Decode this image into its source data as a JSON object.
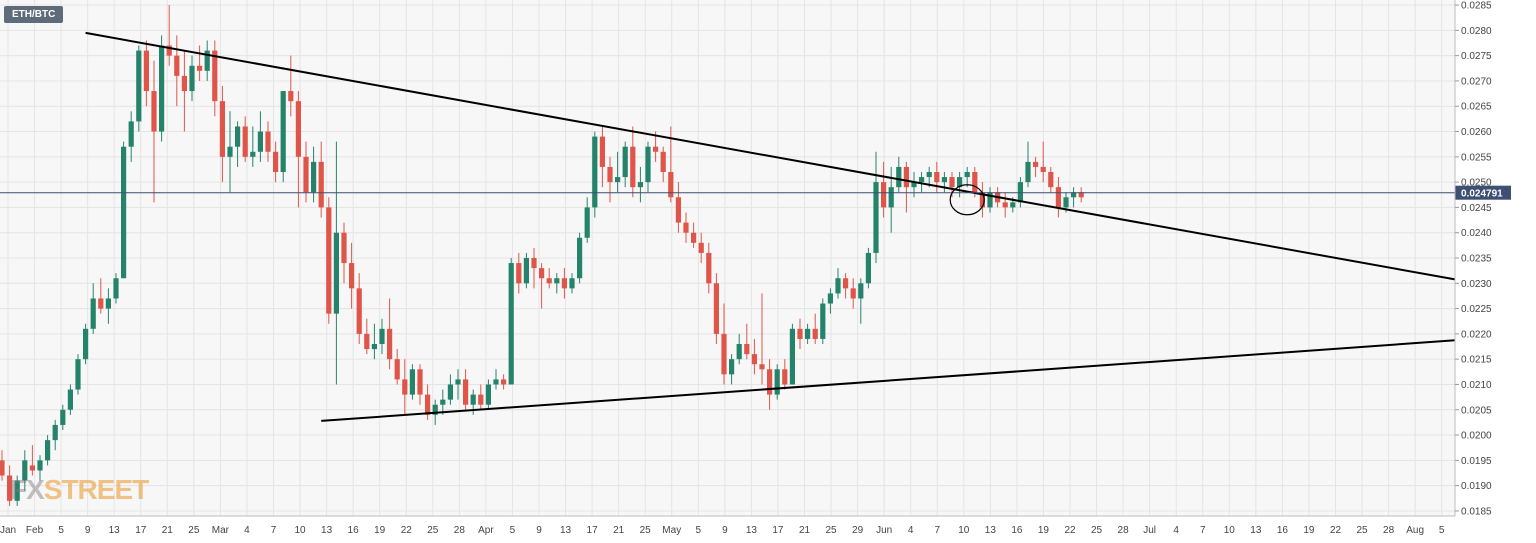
{
  "symbol": "ETH/BTC",
  "watermark": {
    "prefix": "FX",
    "suffix": "STREET"
  },
  "colors": {
    "up": "#26836b",
    "down": "#e0554a",
    "price_line": "#3d4f73",
    "trendline": "#000000",
    "grid": "#e4e4e4",
    "background": "#f7f7f7"
  },
  "chart_data": {
    "type": "candlestick",
    "title": "",
    "ylim": [
      0.0184,
      0.0286
    ],
    "y_ticks": [
      "0.0185",
      "0.0190",
      "0.0195",
      "0.0200",
      "0.0205",
      "0.0210",
      "0.0215",
      "0.0220",
      "0.0225",
      "0.0230",
      "0.0235",
      "0.0240",
      "0.0245",
      "0.0250",
      "0.0255",
      "0.0260",
      "0.0265",
      "0.0270",
      "0.0275",
      "0.0280",
      "0.0285"
    ],
    "x_ticks": [
      "Jan",
      "Feb",
      "5",
      "9",
      "13",
      "17",
      "21",
      "25",
      "Mar",
      "4",
      "7",
      "10",
      "13",
      "16",
      "19",
      "22",
      "25",
      "28",
      "Apr",
      "5",
      "9",
      "13",
      "17",
      "21",
      "25",
      "May",
      "5",
      "9",
      "13",
      "17",
      "21",
      "25",
      "29",
      "Jun",
      "4",
      "7",
      "10",
      "13",
      "16",
      "19",
      "22",
      "25",
      "28",
      "Jul",
      "4",
      "7",
      "10",
      "13",
      "16",
      "19",
      "22",
      "25",
      "28",
      "Aug",
      "5"
    ],
    "last_price": 0.024791,
    "last_price_label": "0.024791",
    "grid": true,
    "candles": [
      [
        0.0195,
        0.0197,
        0.0191,
        0.0192
      ],
      [
        0.0192,
        0.0194,
        0.0186,
        0.0187
      ],
      [
        0.0187,
        0.0192,
        0.0186,
        0.0191
      ],
      [
        0.0191,
        0.0197,
        0.0189,
        0.0195
      ],
      [
        0.0194,
        0.0198,
        0.0192,
        0.0193
      ],
      [
        0.0193,
        0.0196,
        0.0191,
        0.0195
      ],
      [
        0.0195,
        0.02,
        0.0194,
        0.0199
      ],
      [
        0.0199,
        0.0203,
        0.0197,
        0.0202
      ],
      [
        0.0202,
        0.0206,
        0.0201,
        0.0205
      ],
      [
        0.0205,
        0.021,
        0.0204,
        0.0209
      ],
      [
        0.0209,
        0.0216,
        0.0208,
        0.0215
      ],
      [
        0.0215,
        0.0222,
        0.0214,
        0.0221
      ],
      [
        0.0221,
        0.023,
        0.022,
        0.0227
      ],
      [
        0.0227,
        0.0231,
        0.0224,
        0.0225
      ],
      [
        0.0225,
        0.0229,
        0.0222,
        0.0227
      ],
      [
        0.0227,
        0.0232,
        0.0226,
        0.0231
      ],
      [
        0.0231,
        0.0258,
        0.0231,
        0.0257
      ],
      [
        0.0257,
        0.0264,
        0.0254,
        0.0262
      ],
      [
        0.0262,
        0.0277,
        0.026,
        0.0276
      ],
      [
        0.0276,
        0.0278,
        0.0265,
        0.0268
      ],
      [
        0.0268,
        0.0274,
        0.0246,
        0.026
      ],
      [
        0.026,
        0.0279,
        0.0258,
        0.0277
      ],
      [
        0.0277,
        0.0285,
        0.0273,
        0.0275
      ],
      [
        0.0275,
        0.0279,
        0.0265,
        0.0271
      ],
      [
        0.0271,
        0.0276,
        0.026,
        0.0268
      ],
      [
        0.0268,
        0.0275,
        0.0266,
        0.0273
      ],
      [
        0.0273,
        0.0277,
        0.027,
        0.0272
      ],
      [
        0.0272,
        0.0278,
        0.027,
        0.0276
      ],
      [
        0.0276,
        0.0278,
        0.0263,
        0.0266
      ],
      [
        0.0266,
        0.0269,
        0.025,
        0.0255
      ],
      [
        0.0255,
        0.0264,
        0.0248,
        0.0257
      ],
      [
        0.0257,
        0.0262,
        0.0253,
        0.0261
      ],
      [
        0.0261,
        0.0263,
        0.0254,
        0.0255
      ],
      [
        0.0255,
        0.0261,
        0.0253,
        0.0256
      ],
      [
        0.0256,
        0.0264,
        0.0254,
        0.026
      ],
      [
        0.026,
        0.0262,
        0.0254,
        0.0256
      ],
      [
        0.0256,
        0.0258,
        0.025,
        0.0252
      ],
      [
        0.0252,
        0.0268,
        0.025,
        0.0268
      ],
      [
        0.0268,
        0.0275,
        0.0263,
        0.0266
      ],
      [
        0.0266,
        0.0268,
        0.0245,
        0.0255
      ],
      [
        0.0255,
        0.0258,
        0.0246,
        0.0248
      ],
      [
        0.0248,
        0.0257,
        0.0246,
        0.0254
      ],
      [
        0.0254,
        0.0258,
        0.0243,
        0.0245
      ],
      [
        0.0245,
        0.0247,
        0.0222,
        0.0224
      ],
      [
        0.0224,
        0.0258,
        0.021,
        0.024
      ],
      [
        0.024,
        0.0242,
        0.023,
        0.0234
      ],
      [
        0.0234,
        0.0238,
        0.0225,
        0.0229
      ],
      [
        0.0229,
        0.0232,
        0.0218,
        0.022
      ],
      [
        0.022,
        0.0223,
        0.0216,
        0.0217
      ],
      [
        0.0217,
        0.0222,
        0.0215,
        0.0218
      ],
      [
        0.0218,
        0.0223,
        0.0216,
        0.0221
      ],
      [
        0.0221,
        0.0227,
        0.0213,
        0.0215
      ],
      [
        0.0215,
        0.0217,
        0.021,
        0.0211
      ],
      [
        0.0211,
        0.0215,
        0.0204,
        0.0208
      ],
      [
        0.0208,
        0.0214,
        0.0207,
        0.0213
      ],
      [
        0.0213,
        0.0214,
        0.0206,
        0.0208
      ],
      [
        0.0208,
        0.021,
        0.0203,
        0.0204
      ],
      [
        0.0204,
        0.0207,
        0.0202,
        0.0206
      ],
      [
        0.0206,
        0.0209,
        0.0204,
        0.0207
      ],
      [
        0.0207,
        0.0212,
        0.0206,
        0.021
      ],
      [
        0.021,
        0.0213,
        0.0207,
        0.0211
      ],
      [
        0.0211,
        0.0213,
        0.0205,
        0.0206
      ],
      [
        0.0206,
        0.0209,
        0.0204,
        0.0208
      ],
      [
        0.0208,
        0.021,
        0.0205,
        0.0206
      ],
      [
        0.0206,
        0.0211,
        0.0205,
        0.021
      ],
      [
        0.021,
        0.0213,
        0.0209,
        0.0211
      ],
      [
        0.0211,
        0.0212,
        0.0209,
        0.021
      ],
      [
        0.021,
        0.0235,
        0.021,
        0.0234
      ],
      [
        0.0234,
        0.0236,
        0.0228,
        0.023
      ],
      [
        0.023,
        0.0236,
        0.0229,
        0.0235
      ],
      [
        0.0235,
        0.0237,
        0.0229,
        0.0233
      ],
      [
        0.0233,
        0.0234,
        0.0225,
        0.0231
      ],
      [
        0.0231,
        0.0233,
        0.0229,
        0.023
      ],
      [
        0.023,
        0.0232,
        0.0228,
        0.0231
      ],
      [
        0.0231,
        0.0233,
        0.0227,
        0.0229
      ],
      [
        0.0229,
        0.0232,
        0.0228,
        0.0231
      ],
      [
        0.0231,
        0.024,
        0.023,
        0.0239
      ],
      [
        0.0239,
        0.0247,
        0.0238,
        0.0245
      ],
      [
        0.0245,
        0.026,
        0.0243,
        0.0259
      ],
      [
        0.0259,
        0.0261,
        0.0249,
        0.0253
      ],
      [
        0.0253,
        0.0255,
        0.0246,
        0.025
      ],
      [
        0.025,
        0.0256,
        0.0248,
        0.0251
      ],
      [
        0.0251,
        0.0258,
        0.0249,
        0.0257
      ],
      [
        0.0257,
        0.0261,
        0.0247,
        0.0249
      ],
      [
        0.0249,
        0.0253,
        0.0246,
        0.025
      ],
      [
        0.025,
        0.0258,
        0.0248,
        0.0257
      ],
      [
        0.0257,
        0.026,
        0.0254,
        0.0256
      ],
      [
        0.0256,
        0.0257,
        0.025,
        0.0252
      ],
      [
        0.0252,
        0.0261,
        0.0246,
        0.0247
      ],
      [
        0.0247,
        0.025,
        0.024,
        0.0242
      ],
      [
        0.0242,
        0.0244,
        0.0238,
        0.024
      ],
      [
        0.024,
        0.0242,
        0.0237,
        0.0238
      ],
      [
        0.0238,
        0.024,
        0.0234,
        0.0236
      ],
      [
        0.0236,
        0.0238,
        0.0228,
        0.023
      ],
      [
        0.023,
        0.0232,
        0.0218,
        0.022
      ],
      [
        0.022,
        0.0226,
        0.021,
        0.0212
      ],
      [
        0.0212,
        0.0216,
        0.021,
        0.0215
      ],
      [
        0.0215,
        0.022,
        0.0214,
        0.0218
      ],
      [
        0.0218,
        0.0222,
        0.0215,
        0.0216
      ],
      [
        0.0216,
        0.0219,
        0.0212,
        0.0214
      ],
      [
        0.0214,
        0.0228,
        0.021,
        0.0213
      ],
      [
        0.0213,
        0.0215,
        0.0205,
        0.0208
      ],
      [
        0.0208,
        0.0214,
        0.0207,
        0.0213
      ],
      [
        0.0213,
        0.0215,
        0.0209,
        0.021
      ],
      [
        0.021,
        0.0222,
        0.021,
        0.0221
      ],
      [
        0.0221,
        0.0223,
        0.0217,
        0.0219
      ],
      [
        0.0219,
        0.0222,
        0.0218,
        0.0221
      ],
      [
        0.0221,
        0.0224,
        0.0218,
        0.0219
      ],
      [
        0.0219,
        0.0227,
        0.0218,
        0.0226
      ],
      [
        0.0226,
        0.0229,
        0.0224,
        0.0228
      ],
      [
        0.0228,
        0.0233,
        0.0227,
        0.0231
      ],
      [
        0.0231,
        0.0232,
        0.0227,
        0.0229
      ],
      [
        0.0229,
        0.0231,
        0.0225,
        0.0227
      ],
      [
        0.0227,
        0.0231,
        0.0222,
        0.023
      ],
      [
        0.023,
        0.0237,
        0.0229,
        0.0236
      ],
      [
        0.0236,
        0.0256,
        0.0234,
        0.025
      ],
      [
        0.025,
        0.0254,
        0.0243,
        0.0245
      ],
      [
        0.0245,
        0.0253,
        0.024,
        0.0249
      ],
      [
        0.0249,
        0.0255,
        0.0248,
        0.0253
      ],
      [
        0.0253,
        0.0254,
        0.0244,
        0.0249
      ],
      [
        0.0249,
        0.0252,
        0.0247,
        0.025
      ],
      [
        0.025,
        0.0252,
        0.0248,
        0.0251
      ],
      [
        0.0251,
        0.0253,
        0.0249,
        0.0252
      ],
      [
        0.0252,
        0.0254,
        0.0248,
        0.025
      ],
      [
        0.025,
        0.0252,
        0.0248,
        0.0251
      ],
      [
        0.0251,
        0.0252,
        0.0247,
        0.0249
      ],
      [
        0.0249,
        0.0252,
        0.0247,
        0.0251
      ],
      [
        0.0251,
        0.0253,
        0.0249,
        0.0252
      ],
      [
        0.0252,
        0.0253,
        0.0247,
        0.0248
      ],
      [
        0.0248,
        0.025,
        0.0243,
        0.0245
      ],
      [
        0.0245,
        0.0249,
        0.0244,
        0.0248
      ],
      [
        0.0248,
        0.0249,
        0.0245,
        0.0246
      ],
      [
        0.0246,
        0.0248,
        0.0243,
        0.0245
      ],
      [
        0.0245,
        0.0247,
        0.0244,
        0.0246
      ],
      [
        0.0246,
        0.0251,
        0.0245,
        0.025
      ],
      [
        0.025,
        0.0258,
        0.0249,
        0.0254
      ],
      [
        0.0254,
        0.0255,
        0.0251,
        0.0253
      ],
      [
        0.0253,
        0.0258,
        0.025,
        0.0252
      ],
      [
        0.0252,
        0.0253,
        0.0248,
        0.0249
      ],
      [
        0.0249,
        0.0251,
        0.0243,
        0.0245
      ],
      [
        0.0245,
        0.0248,
        0.0244,
        0.0247
      ],
      [
        0.0247,
        0.0249,
        0.0245,
        0.0248
      ],
      [
        0.0248,
        0.0249,
        0.0246,
        0.0247
      ]
    ],
    "trendlines": [
      {
        "name": "",
        "from": [
          11,
          0.02795
        ],
        "to": [
          160,
          0.02392
        ]
      },
      {
        "name": "",
        "from": [
          42,
          0.02028
        ],
        "to": [
          160,
          0.02154
        ]
      }
    ],
    "annotations": [
      {
        "type": "ellipse",
        "at": [
          127,
          0.02475
        ]
      }
    ]
  }
}
